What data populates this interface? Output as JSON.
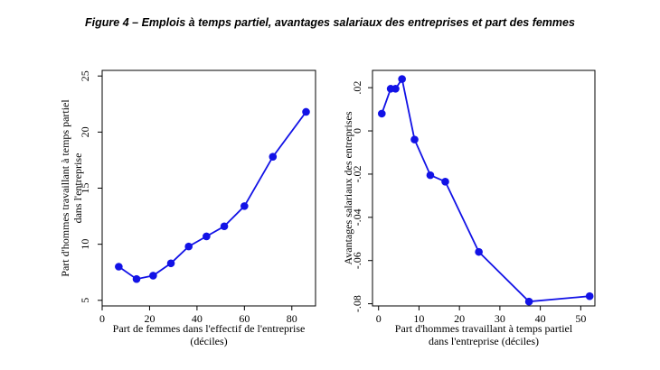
{
  "figure_title": "Figure 4 – Emplois à temps partiel, avantages salariaux des entreprises et part des femmes",
  "colors": {
    "series": "#1212e6",
    "axis": "#000000"
  },
  "chart_data": [
    {
      "type": "line",
      "title": "",
      "xlabel_lines": [
        "Part de femmes dans l'effectif de l'entreprise",
        "(déciles)"
      ],
      "ylabel_lines": [
        "Part d'hommes travaillant à temps partiel",
        "dans l'entreprise"
      ],
      "xlim": [
        0,
        90
      ],
      "ylim": [
        4.5,
        25.5
      ],
      "xticks": [
        0,
        20,
        40,
        60,
        80
      ],
      "xtick_labels": [
        "0",
        "20",
        "40",
        "60",
        "80"
      ],
      "yticks": [
        5,
        10,
        15,
        20,
        25
      ],
      "ytick_labels": [
        "5",
        "10",
        "15",
        "20",
        "25"
      ],
      "grid": false,
      "series": [
        {
          "x": [
            7,
            14.5,
            21.5,
            29,
            36.5,
            44,
            51.5,
            60,
            72,
            86
          ],
          "y": [
            8.0,
            6.9,
            7.2,
            8.3,
            9.8,
            10.7,
            11.6,
            13.4,
            17.8,
            21.8
          ]
        }
      ]
    },
    {
      "type": "line",
      "title": "",
      "xlabel_lines": [
        "Part d'hommes travaillant à temps partiel",
        "dans l'entreprise (déciles)"
      ],
      "ylabel_lines": [
        "Avantages salariaux des entreprises"
      ],
      "xlim": [
        -1.5,
        53.5
      ],
      "ylim": [
        -0.081,
        0.028
      ],
      "xticks": [
        0,
        10,
        20,
        30,
        40,
        50
      ],
      "xtick_labels": [
        "0",
        "10",
        "20",
        "30",
        "40",
        "50"
      ],
      "yticks": [
        0.02,
        0,
        -0.02,
        -0.04,
        -0.06,
        -0.08
      ],
      "ytick_labels": [
        ".02",
        "0",
        "-.02",
        "-.04",
        "-.06",
        "-.08"
      ],
      "grid": false,
      "series": [
        {
          "x": [
            0.8,
            3.0,
            4.2,
            5.8,
            8.9,
            12.8,
            16.5,
            24.8,
            37.2,
            52.2
          ],
          "y": [
            0.008,
            0.0195,
            0.0195,
            0.024,
            -0.004,
            -0.0205,
            -0.0235,
            -0.056,
            -0.079,
            -0.0765
          ]
        }
      ]
    }
  ]
}
